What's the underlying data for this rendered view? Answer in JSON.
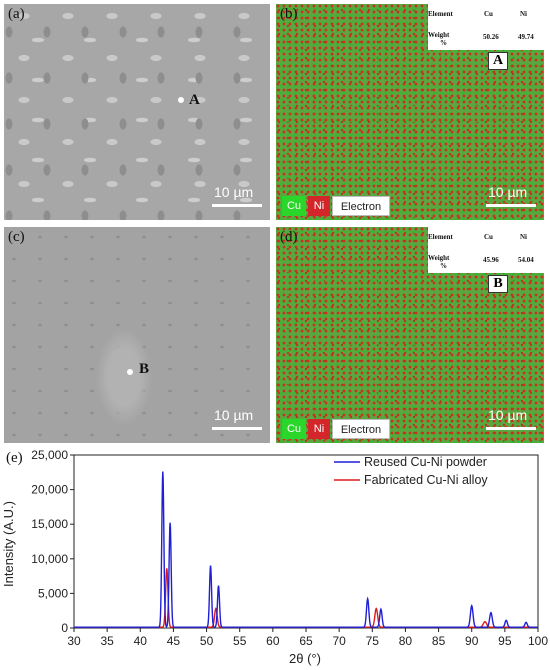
{
  "panels": {
    "a": {
      "label": "(a)",
      "point": "A",
      "scale": "10 µm"
    },
    "b": {
      "label": "(b)",
      "point": "A",
      "scale": "10 µm",
      "table": {
        "element_header": "Element",
        "cu": "Cu",
        "ni": "Ni",
        "weight_label": "Weight",
        "weight_unit": "%",
        "cu_value": "50.26",
        "ni_value": "49.74"
      },
      "legend": {
        "cu": "Cu",
        "ni": "Ni",
        "electron": "Electron"
      }
    },
    "c": {
      "label": "(c)",
      "point": "B",
      "scale": "10 µm"
    },
    "d": {
      "label": "(d)",
      "point": "B",
      "scale": "10 µm",
      "table": {
        "element_header": "Element",
        "cu": "Cu",
        "ni": "Ni",
        "weight_label": "Weight",
        "weight_unit": "%",
        "cu_value": "45.96",
        "ni_value": "54.04"
      },
      "legend": {
        "cu": "Cu",
        "ni": "Ni",
        "electron": "Electron"
      }
    },
    "e": {
      "label": "(e)"
    }
  },
  "colors": {
    "reused": "#1f1fd6",
    "fabricated": "#e01a1a",
    "cu_map": "#2bd62b",
    "ni_map": "#d3262b"
  },
  "chart_data": {
    "type": "line",
    "xlabel": "2θ (°)",
    "ylabel": "Intensity (A.U.)",
    "xlim": [
      30,
      100
    ],
    "ylim": [
      0,
      25000
    ],
    "xticks": [
      30,
      35,
      40,
      45,
      50,
      55,
      60,
      65,
      70,
      75,
      80,
      85,
      90,
      95,
      100
    ],
    "yticks": [
      0,
      5000,
      10000,
      15000,
      20000,
      25000
    ],
    "ytick_labels": [
      "0",
      "5,000",
      "10,000",
      "15,000",
      "20,000",
      "25,000"
    ],
    "legend_position": "top-right",
    "series": [
      {
        "name": "Reused Cu-Ni powder",
        "color": "#1f1fd6",
        "peaks": [
          [
            43.4,
            22500,
            0.22
          ],
          [
            44.5,
            15100,
            0.22
          ],
          [
            50.6,
            8900,
            0.22
          ],
          [
            51.8,
            6000,
            0.22
          ],
          [
            74.3,
            4100,
            0.25
          ],
          [
            76.3,
            2600,
            0.25
          ],
          [
            90.0,
            3100,
            0.28
          ],
          [
            92.9,
            2100,
            0.28
          ],
          [
            95.2,
            1000,
            0.25
          ],
          [
            98.2,
            700,
            0.25
          ]
        ]
      },
      {
        "name": "Fabricated Cu-Ni alloy",
        "color": "#e01a1a",
        "peaks": [
          [
            44.0,
            8500,
            0.25
          ],
          [
            51.4,
            2700,
            0.28
          ],
          [
            75.6,
            2700,
            0.3
          ],
          [
            92.0,
            800,
            0.35
          ]
        ]
      }
    ]
  }
}
